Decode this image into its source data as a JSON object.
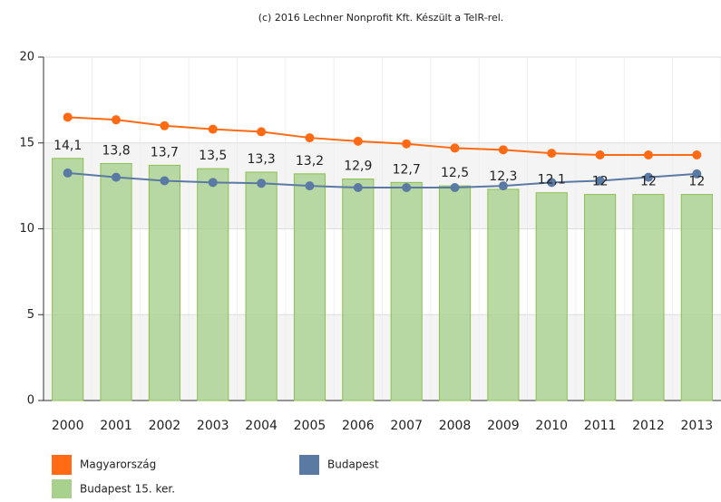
{
  "chart_data": {
    "type": "bar",
    "title": "(c) 2016 Lechner Nonprofit Kft. Készült a TeIR-rel.",
    "categories": [
      "2000",
      "2001",
      "2002",
      "2003",
      "2004",
      "2005",
      "2006",
      "2007",
      "2008",
      "2009",
      "2010",
      "2011",
      "2012",
      "2013"
    ],
    "series": [
      {
        "name": "Magyarország",
        "type": "line",
        "color": "#ff6a13",
        "values": [
          16.5,
          16.35,
          16.0,
          15.8,
          15.65,
          15.3,
          15.1,
          14.95,
          14.7,
          14.6,
          14.4,
          14.3,
          14.3,
          14.3
        ]
      },
      {
        "name": "Budapest",
        "type": "line",
        "color": "#5b7aa3",
        "values": [
          13.25,
          13.0,
          12.8,
          12.7,
          12.65,
          12.5,
          12.4,
          12.4,
          12.4,
          12.5,
          12.7,
          12.8,
          13.0,
          13.2
        ]
      },
      {
        "name": "Budapest 15. ker.",
        "type": "bar",
        "color": "#a9d18e",
        "values": [
          14.1,
          13.8,
          13.7,
          13.5,
          13.3,
          13.2,
          12.9,
          12.7,
          12.5,
          12.3,
          12.1,
          12,
          12,
          12
        ],
        "value_labels": [
          "14,1",
          "13,8",
          "13,7",
          "13,5",
          "13,3",
          "13,2",
          "12,9",
          "12,7",
          "12,5",
          "12,3",
          "12,1",
          "12",
          "12",
          "12"
        ]
      }
    ],
    "ylim": [
      0,
      20
    ],
    "yticks": [
      0,
      5,
      10,
      15,
      20
    ],
    "grid": true,
    "legend": "bottom"
  }
}
